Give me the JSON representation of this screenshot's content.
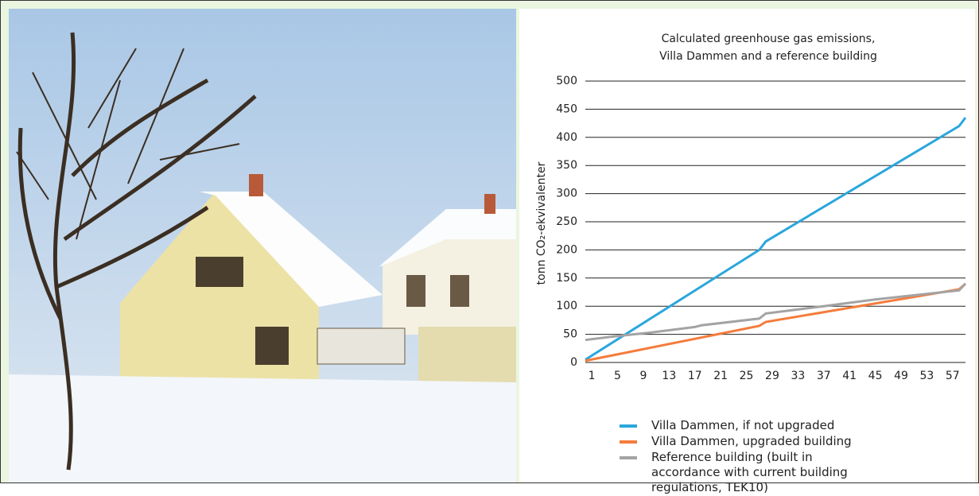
{
  "chart_data": {
    "type": "line",
    "title": [
      "Calculated greenhouse gas emissions,",
      "Villa Dammen and a reference building"
    ],
    "y_label": "tonn CO₂-ekvivalenter",
    "xlim": [
      0,
      59
    ],
    "xticks": [
      1,
      5,
      9,
      13,
      17,
      21,
      25,
      29,
      33,
      37,
      41,
      45,
      49,
      53,
      57
    ],
    "ylim": [
      0,
      500
    ],
    "yticks": [
      0,
      50,
      100,
      150,
      200,
      250,
      300,
      350,
      400,
      450,
      500
    ],
    "grid": true,
    "series": [
      {
        "name": "Villa Dammen, if not upgraded",
        "color": "#2ba6dc",
        "x": [
          0,
          27,
          28,
          58,
          59
        ],
        "values": [
          5,
          200,
          215,
          420,
          435
        ]
      },
      {
        "name": "Villa Dammen, upgraded building",
        "color": "#f47c3c",
        "x": [
          0,
          27,
          28,
          58,
          59
        ],
        "values": [
          3,
          65,
          72,
          130,
          140
        ]
      },
      {
        "name": "Reference building (built in accordance with current building regulations, TEK10)",
        "color": "#a3a3a3",
        "x": [
          0,
          5,
          10,
          17,
          18,
          27,
          28,
          37,
          45,
          58,
          59
        ],
        "values": [
          40,
          47,
          53,
          63,
          66,
          78,
          87,
          100,
          112,
          128,
          140
        ]
      }
    ]
  }
}
